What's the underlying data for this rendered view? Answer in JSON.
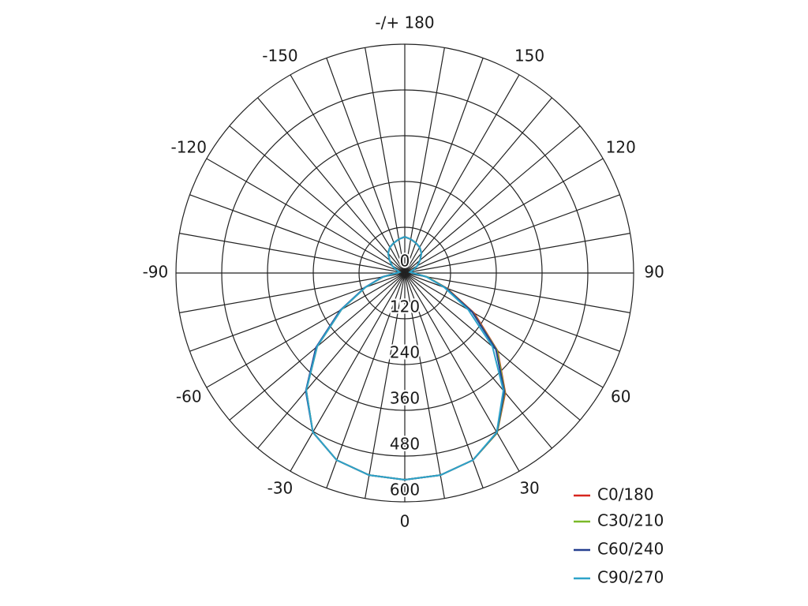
{
  "chart_data": {
    "type": "polar",
    "x": [
      -180,
      -170,
      -160,
      -150,
      -140,
      -130,
      -120,
      -110,
      -100,
      -90,
      -80,
      -70,
      -60,
      -50,
      -40,
      -30,
      -20,
      -10,
      0,
      10,
      20,
      30,
      40,
      50,
      60,
      70,
      80,
      90,
      100,
      110,
      120,
      130,
      140,
      150,
      160,
      170,
      180
    ],
    "series": [
      {
        "name": "C0/180",
        "color": "#d7261e",
        "values": [
          95,
          90,
          84,
          78,
          68,
          52,
          38,
          24,
          14,
          22,
          58,
          110,
          192,
          300,
          402,
          482,
          522,
          538,
          542,
          538,
          522,
          484,
          410,
          318,
          210,
          118,
          60,
          22,
          14,
          24,
          38,
          52,
          68,
          78,
          84,
          90,
          95
        ]
      },
      {
        "name": "C30/210",
        "color": "#7ab929",
        "values": [
          95,
          90,
          84,
          78,
          68,
          52,
          38,
          24,
          14,
          22,
          58,
          110,
          192,
          300,
          402,
          482,
          522,
          538,
          542,
          538,
          522,
          484,
          408,
          316,
          206,
          116,
          60,
          22,
          14,
          24,
          38,
          52,
          68,
          78,
          84,
          90,
          95
        ]
      },
      {
        "name": "C60/240",
        "color": "#243f8f",
        "values": [
          95,
          90,
          84,
          78,
          68,
          52,
          38,
          24,
          14,
          22,
          60,
          112,
          196,
          304,
          404,
          482,
          522,
          538,
          542,
          538,
          522,
          483,
          406,
          312,
          204,
          114,
          58,
          22,
          14,
          24,
          38,
          52,
          68,
          78,
          84,
          90,
          95
        ]
      },
      {
        "name": "C90/270",
        "color": "#2ea3c9",
        "values": [
          95,
          90,
          84,
          78,
          68,
          52,
          38,
          24,
          14,
          22,
          58,
          110,
          192,
          300,
          402,
          482,
          522,
          538,
          542,
          538,
          522,
          482,
          402,
          300,
          192,
          110,
          58,
          22,
          14,
          24,
          38,
          52,
          68,
          78,
          84,
          90,
          95
        ]
      }
    ],
    "rlim": [
      0,
      600
    ],
    "rticks": [
      0,
      120,
      240,
      360,
      480,
      600
    ],
    "angle_ticks": [
      {
        "value": 180,
        "label": "-/+ 180"
      },
      -150,
      -120,
      -90,
      -60,
      -30,
      0,
      30,
      60,
      90,
      120,
      150
    ],
    "angular_grid_step": 10,
    "legend": "bottom-right"
  }
}
